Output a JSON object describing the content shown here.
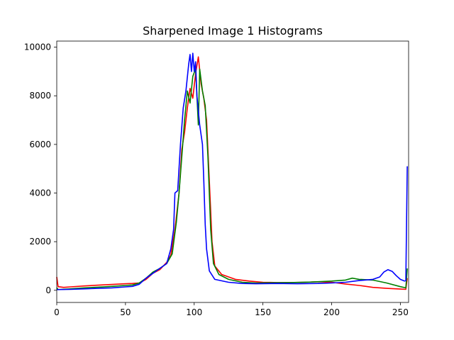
{
  "chart_data": {
    "type": "line",
    "title": "Sharpened Image 1 Histograms",
    "xlabel": "",
    "ylabel": "",
    "xlim": [
      0,
      256
    ],
    "ylim": [
      -500,
      10250
    ],
    "xticks": [
      0,
      50,
      100,
      150,
      200,
      250
    ],
    "yticks": [
      0,
      2000,
      4000,
      6000,
      8000,
      10000
    ],
    "grid": false,
    "legend": "none",
    "series": [
      {
        "color": "#ff0000",
        "points": [
          [
            0,
            550
          ],
          [
            1,
            150
          ],
          [
            5,
            120
          ],
          [
            10,
            140
          ],
          [
            20,
            180
          ],
          [
            30,
            210
          ],
          [
            40,
            240
          ],
          [
            50,
            270
          ],
          [
            55,
            280
          ],
          [
            60,
            300
          ],
          [
            65,
            450
          ],
          [
            70,
            700
          ],
          [
            75,
            850
          ],
          [
            80,
            1150
          ],
          [
            83,
            1450
          ],
          [
            86,
            2500
          ],
          [
            89,
            4000
          ],
          [
            91,
            5800
          ],
          [
            93,
            6500
          ],
          [
            95,
            7500
          ],
          [
            97,
            8300
          ],
          [
            99,
            7900
          ],
          [
            101,
            8900
          ],
          [
            103,
            9600
          ],
          [
            105,
            8500
          ],
          [
            107,
            7900
          ],
          [
            109,
            7000
          ],
          [
            111,
            4500
          ],
          [
            113,
            2000
          ],
          [
            115,
            1000
          ],
          [
            120,
            650
          ],
          [
            130,
            450
          ],
          [
            140,
            380
          ],
          [
            150,
            330
          ],
          [
            160,
            320
          ],
          [
            170,
            320
          ],
          [
            180,
            330
          ],
          [
            190,
            350
          ],
          [
            200,
            330
          ],
          [
            210,
            260
          ],
          [
            220,
            200
          ],
          [
            230,
            120
          ],
          [
            240,
            80
          ],
          [
            250,
            50
          ],
          [
            254,
            40
          ],
          [
            255,
            500
          ]
        ]
      },
      {
        "color": "#008000",
        "points": [
          [
            0,
            100
          ],
          [
            1,
            30
          ],
          [
            10,
            60
          ],
          [
            20,
            100
          ],
          [
            30,
            130
          ],
          [
            40,
            160
          ],
          [
            50,
            200
          ],
          [
            55,
            220
          ],
          [
            60,
            300
          ],
          [
            65,
            500
          ],
          [
            70,
            750
          ],
          [
            75,
            900
          ],
          [
            80,
            1100
          ],
          [
            84,
            1500
          ],
          [
            87,
            2800
          ],
          [
            89,
            4000
          ],
          [
            91,
            5500
          ],
          [
            93,
            7000
          ],
          [
            95,
            8200
          ],
          [
            97,
            7700
          ],
          [
            99,
            8800
          ],
          [
            101,
            9100
          ],
          [
            103,
            6800
          ],
          [
            104,
            9100
          ],
          [
            106,
            8200
          ],
          [
            108,
            7600
          ],
          [
            110,
            5500
          ],
          [
            112,
            2500
          ],
          [
            114,
            1100
          ],
          [
            118,
            650
          ],
          [
            125,
            450
          ],
          [
            135,
            330
          ],
          [
            145,
            300
          ],
          [
            155,
            310
          ],
          [
            170,
            320
          ],
          [
            185,
            340
          ],
          [
            200,
            380
          ],
          [
            210,
            420
          ],
          [
            215,
            500
          ],
          [
            220,
            450
          ],
          [
            230,
            420
          ],
          [
            240,
            300
          ],
          [
            250,
            150
          ],
          [
            254,
            100
          ],
          [
            255,
            900
          ]
        ]
      },
      {
        "color": "#0000ff",
        "points": [
          [
            0,
            30
          ],
          [
            10,
            40
          ],
          [
            20,
            60
          ],
          [
            30,
            80
          ],
          [
            40,
            100
          ],
          [
            50,
            140
          ],
          [
            55,
            160
          ],
          [
            60,
            250
          ],
          [
            65,
            500
          ],
          [
            70,
            700
          ],
          [
            75,
            900
          ],
          [
            80,
            1100
          ],
          [
            83,
            1700
          ],
          [
            85,
            2500
          ],
          [
            86,
            4000
          ],
          [
            88,
            4100
          ],
          [
            90,
            6000
          ],
          [
            92,
            7500
          ],
          [
            94,
            8200
          ],
          [
            96,
            9300
          ],
          [
            97,
            9700
          ],
          [
            98,
            9000
          ],
          [
            99,
            9750
          ],
          [
            100,
            9000
          ],
          [
            101,
            9400
          ],
          [
            102,
            8000
          ],
          [
            104,
            6800
          ],
          [
            106,
            6000
          ],
          [
            107,
            4500
          ],
          [
            108,
            2700
          ],
          [
            109,
            1700
          ],
          [
            111,
            800
          ],
          [
            115,
            450
          ],
          [
            125,
            330
          ],
          [
            135,
            280
          ],
          [
            145,
            270
          ],
          [
            160,
            280
          ],
          [
            175,
            270
          ],
          [
            190,
            280
          ],
          [
            200,
            300
          ],
          [
            210,
            330
          ],
          [
            220,
            400
          ],
          [
            230,
            450
          ],
          [
            235,
            550
          ],
          [
            238,
            750
          ],
          [
            241,
            850
          ],
          [
            244,
            780
          ],
          [
            247,
            600
          ],
          [
            250,
            450
          ],
          [
            253,
            380
          ],
          [
            254,
            400
          ],
          [
            255,
            5100
          ]
        ]
      }
    ]
  }
}
